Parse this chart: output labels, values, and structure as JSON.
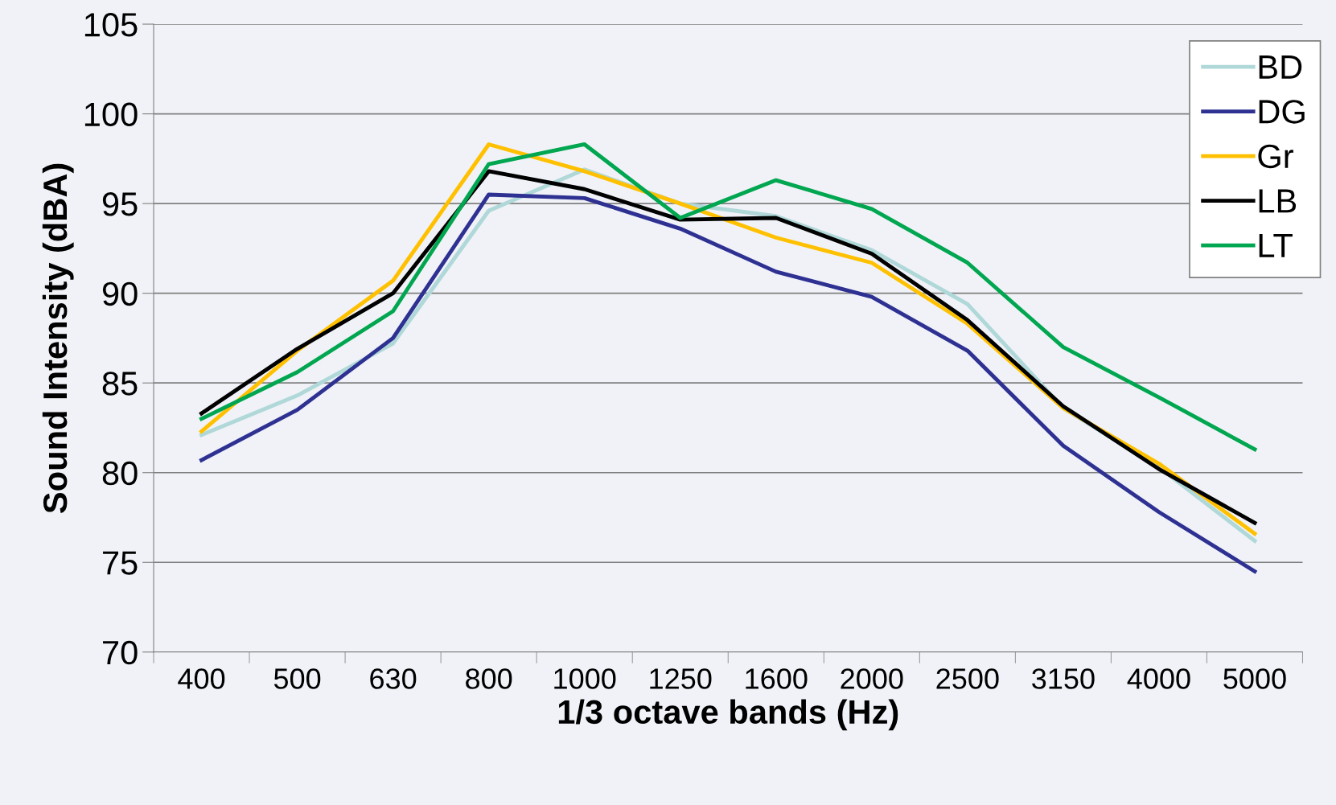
{
  "chart_data": {
    "type": "line",
    "xlabel": "1/3 octave bands (Hz)",
    "ylabel": "Sound Intensity (dBA)",
    "categories": [
      "400",
      "500",
      "630",
      "800",
      "1000",
      "1250",
      "1600",
      "2000",
      "2500",
      "3150",
      "4000",
      "5000"
    ],
    "series": [
      {
        "name": "BD",
        "color": "#b0d8d8",
        "values": [
          82.1,
          84.3,
          87.2,
          94.6,
          96.9,
          95.0,
          94.3,
          92.4,
          89.4,
          83.6,
          80.3,
          76.2
        ]
      },
      {
        "name": "DG",
        "color": "#2e3192",
        "values": [
          80.7,
          83.5,
          87.5,
          95.5,
          95.3,
          93.6,
          91.2,
          89.8,
          86.8,
          81.5,
          77.8,
          74.5
        ]
      },
      {
        "name": "Gr",
        "color": "#ffc000",
        "values": [
          82.3,
          86.8,
          90.7,
          98.3,
          96.8,
          95.0,
          93.1,
          91.7,
          88.3,
          83.6,
          80.5,
          76.6
        ]
      },
      {
        "name": "LB",
        "color": "#000000",
        "values": [
          83.3,
          86.9,
          90.0,
          96.8,
          95.8,
          94.1,
          94.2,
          92.2,
          88.5,
          83.7,
          80.2,
          77.2
        ]
      },
      {
        "name": "LT",
        "color": "#00a650",
        "values": [
          83.0,
          85.6,
          89.0,
          97.2,
          98.3,
          94.2,
          96.3,
          94.7,
          91.7,
          87.0,
          84.2,
          81.3
        ]
      }
    ],
    "ylim": [
      70,
      105
    ],
    "yticks": [
      70,
      75,
      80,
      85,
      90,
      95,
      100,
      105
    ],
    "grid": "y",
    "legend": "top right",
    "marker": "none",
    "line_style": "solid"
  }
}
